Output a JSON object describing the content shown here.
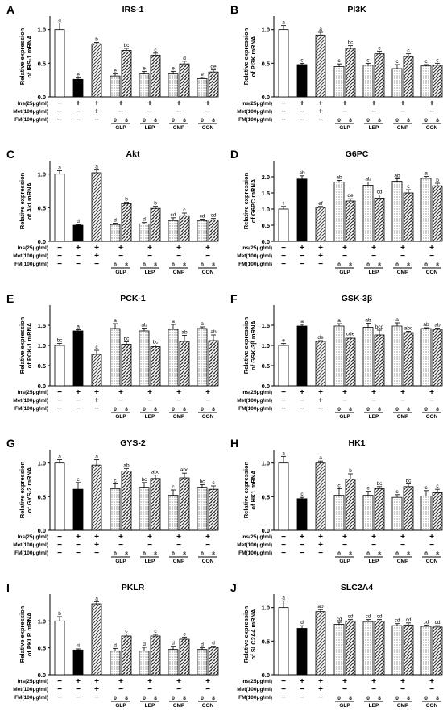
{
  "figure": {
    "groups": [
      {
        "label": "",
        "bars": 1
      },
      {
        "label": "",
        "bars": 1
      },
      {
        "label": "",
        "bars": 1
      },
      {
        "label": "GLP",
        "bars": 2
      },
      {
        "label": "LEP",
        "bars": 2
      },
      {
        "label": "CMP",
        "bars": 2
      },
      {
        "label": "CON",
        "bars": 2
      }
    ],
    "fm_doses": [
      "0",
      "8"
    ],
    "treatment_rows": [
      {
        "label": "Ins(25μg/ml)",
        "signs": [
          "−",
          "+",
          "+",
          "+",
          "+",
          "+",
          "+"
        ]
      },
      {
        "label": "Met(100μg/ml)",
        "signs": [
          "−",
          "−",
          "+",
          "−",
          "−",
          "−",
          "−"
        ]
      },
      {
        "label": "FM(100μg/ml)",
        "signs": [
          "−",
          "−",
          "−",
          "doses",
          "doses",
          "doses",
          "doses"
        ]
      }
    ],
    "bar_styles": [
      "white",
      "black",
      "diag",
      "dots",
      "dots-diag",
      "dots",
      "dots-diag",
      "dots",
      "dots-diag",
      "dots",
      "dots-diag"
    ],
    "colors": {
      "black": "#000000",
      "white": "#ffffff",
      "hatch": "#444444"
    }
  },
  "chart_data": [
    {
      "panel": "A",
      "type": "bar",
      "title": "IRS-1",
      "ylabel": "Relative expression of IRS-1 mRNA",
      "ylim": [
        0,
        1.2
      ],
      "yticks": [
        "0.0",
        "0.5",
        "1.0"
      ],
      "tickvals": [
        0,
        0.5,
        1.0
      ],
      "values": [
        1.0,
        0.26,
        0.79,
        0.31,
        0.69,
        0.34,
        0.62,
        0.34,
        0.49,
        0.27,
        0.37
      ],
      "errors": [
        0.1,
        0.02,
        0.02,
        0.03,
        0.03,
        0.04,
        0.03,
        0.04,
        0.04,
        0.02,
        0.03
      ],
      "letters": [
        "a",
        "e",
        "b",
        "e",
        "bc",
        "e",
        "c",
        "e",
        "d",
        "e",
        "de"
      ]
    },
    {
      "panel": "B",
      "type": "bar",
      "title": "PI3K",
      "ylabel": "Relative expression of PI3K mRNA",
      "ylim": [
        0,
        1.2
      ],
      "yticks": [
        "0.0",
        "0.5",
        "1.0"
      ],
      "tickvals": [
        0,
        0.5,
        1.0
      ],
      "values": [
        1.0,
        0.48,
        0.92,
        0.45,
        0.72,
        0.47,
        0.64,
        0.42,
        0.6,
        0.46,
        0.47
      ],
      "errors": [
        0.06,
        0.02,
        0.04,
        0.04,
        0.04,
        0.03,
        0.04,
        0.06,
        0.04,
        0.02,
        0.03
      ],
      "letters": [
        "a",
        "c",
        "a",
        "c",
        "bc",
        "c",
        "c",
        "c",
        "c",
        "c",
        "c"
      ]
    },
    {
      "panel": "C",
      "type": "bar",
      "title": "Akt",
      "ylabel": "Relative expression of Akt mRNA",
      "ylim": [
        0,
        1.2
      ],
      "yticks": [
        "0.0",
        "0.5",
        "1.0"
      ],
      "tickvals": [
        0,
        0.5,
        1.0
      ],
      "values": [
        1.0,
        0.24,
        1.02,
        0.25,
        0.56,
        0.26,
        0.49,
        0.31,
        0.38,
        0.31,
        0.32
      ],
      "errors": [
        0.05,
        0.01,
        0.04,
        0.02,
        0.02,
        0.02,
        0.03,
        0.04,
        0.04,
        0.02,
        0.02
      ],
      "letters": [
        "a",
        "d",
        "a",
        "d",
        "b",
        "d",
        "b",
        "cd",
        "c",
        "cd",
        "cd"
      ]
    },
    {
      "panel": "D",
      "type": "bar",
      "title": "G6PC",
      "ylabel": "Relative expression of G6PC mRNA",
      "ylim": [
        0,
        2.5
      ],
      "yticks": [
        "0.0",
        "0.5",
        "1.0",
        "1.5",
        "2.0"
      ],
      "tickvals": [
        0,
        0.5,
        1.0,
        1.5,
        2.0
      ],
      "values": [
        1.0,
        1.93,
        1.05,
        1.84,
        1.25,
        1.74,
        1.34,
        1.86,
        1.5,
        1.95,
        1.72
      ],
      "errors": [
        0.08,
        0.1,
        0.03,
        0.05,
        0.07,
        0.1,
        0.1,
        0.08,
        0.1,
        0.06,
        0.08
      ],
      "letters": [
        "f",
        "ab",
        "ef",
        "ab",
        "de",
        "ab",
        "cd",
        "ab",
        "c",
        "a",
        "b"
      ]
    },
    {
      "panel": "E",
      "type": "bar",
      "title": "PCK-1",
      "ylabel": "Relative expression of PCK-1 mRNA",
      "ylim": [
        0,
        2.0
      ],
      "yticks": [
        "0.0",
        "0.5",
        "1.0",
        "1.5"
      ],
      "tickvals": [
        0,
        0.5,
        1.0,
        1.5
      ],
      "values": [
        1.0,
        1.36,
        0.78,
        1.42,
        1.03,
        1.36,
        0.97,
        1.4,
        1.1,
        1.42,
        1.12
      ],
      "errors": [
        0.05,
        0.03,
        0.1,
        0.12,
        0.06,
        0.07,
        0.04,
        0.12,
        0.15,
        0.04,
        0.14
      ],
      "letters": [
        "bc",
        "a",
        "c",
        "a",
        "bc",
        "ab",
        "bc",
        "a",
        "ab",
        "a",
        "ab"
      ]
    },
    {
      "panel": "F",
      "type": "bar",
      "title": "GSK-3β",
      "ylabel": "Relative expression of GSK-3β mRNA",
      "ylim": [
        0,
        2.0
      ],
      "yticks": [
        "0.0",
        "0.5",
        "1.0",
        "1.5"
      ],
      "tickvals": [
        0,
        0.5,
        1.0,
        1.5
      ],
      "values": [
        1.0,
        1.48,
        1.1,
        1.48,
        1.18,
        1.45,
        1.26,
        1.48,
        1.32,
        1.42,
        1.4
      ],
      "errors": [
        0.05,
        0.04,
        0.02,
        0.06,
        0.03,
        0.1,
        0.12,
        0.08,
        0.03,
        0.02,
        0.03
      ],
      "letters": [
        "e",
        "a",
        "de",
        "a",
        "cde",
        "ab",
        "bcd",
        "a",
        "abc",
        "ab",
        "ab"
      ]
    },
    {
      "panel": "G",
      "type": "bar",
      "title": "GYS-2",
      "ylabel": "Relative expression of GYS-2 mRNA",
      "ylim": [
        0,
        1.2
      ],
      "yticks": [
        "0.0",
        "0.5",
        "1.0"
      ],
      "tickvals": [
        0,
        0.5,
        1.0
      ],
      "values": [
        1.0,
        0.61,
        0.97,
        0.62,
        0.88,
        0.64,
        0.77,
        0.52,
        0.78,
        0.64,
        0.61
      ],
      "errors": [
        0.05,
        0.1,
        0.08,
        0.07,
        0.04,
        0.07,
        0.05,
        0.08,
        0.07,
        0.04,
        0.05
      ],
      "letters": [
        "a",
        "c",
        "a",
        "c",
        "ab",
        "bc",
        "abc",
        "c",
        "abc",
        "bc",
        "c"
      ]
    },
    {
      "panel": "H",
      "type": "bar",
      "title": "HK1",
      "ylabel": "Relative expression of HK1 mRNA",
      "ylim": [
        0,
        1.2
      ],
      "yticks": [
        "0.0",
        "0.5",
        "1.0"
      ],
      "tickvals": [
        0,
        0.5,
        1.0
      ],
      "values": [
        1.0,
        0.47,
        1.0,
        0.52,
        0.76,
        0.52,
        0.62,
        0.49,
        0.65,
        0.51,
        0.56
      ],
      "errors": [
        0.1,
        0.02,
        0.03,
        0.1,
        0.08,
        0.06,
        0.03,
        0.04,
        0.04,
        0.08,
        0.05
      ],
      "letters": [
        "a",
        "c",
        "a",
        "c",
        "b",
        "c",
        "bc",
        "c",
        "bc",
        "c",
        "c"
      ]
    },
    {
      "panel": "I",
      "type": "bar",
      "title": "PKLR",
      "ylabel": "Relative expression of PKLR mRNA",
      "ylim": [
        0,
        1.5
      ],
      "yticks": [
        "0.0",
        "0.5",
        "1.0"
      ],
      "tickvals": [
        0,
        0.5,
        1.0
      ],
      "values": [
        1.0,
        0.46,
        1.32,
        0.44,
        0.72,
        0.44,
        0.72,
        0.47,
        0.66,
        0.47,
        0.51
      ],
      "errors": [
        0.08,
        0.02,
        0.04,
        0.05,
        0.04,
        0.07,
        0.03,
        0.06,
        0.04,
        0.03,
        0.02
      ],
      "letters": [
        "b",
        "d",
        "a",
        "d",
        "c",
        "d",
        "c",
        "d",
        "c",
        "d",
        "d"
      ]
    },
    {
      "panel": "J",
      "type": "bar",
      "title": "SLC2A4",
      "ylabel": "Relative expression of SLC2A4 mRNA",
      "ylim": [
        0,
        1.2
      ],
      "yticks": [
        "0.0",
        "0.5",
        "1.0"
      ],
      "tickvals": [
        0,
        0.5,
        1.0
      ],
      "values": [
        1.0,
        0.69,
        0.94,
        0.75,
        0.8,
        0.79,
        0.8,
        0.73,
        0.74,
        0.72,
        0.71
      ],
      "errors": [
        0.1,
        0.04,
        0.03,
        0.03,
        0.02,
        0.03,
        0.02,
        0.03,
        0.03,
        0.02,
        0.02
      ],
      "letters": [
        "a",
        "d",
        "ab",
        "cd",
        "cd",
        "cd",
        "cd",
        "cd",
        "cd",
        "cd",
        "cd"
      ]
    }
  ]
}
